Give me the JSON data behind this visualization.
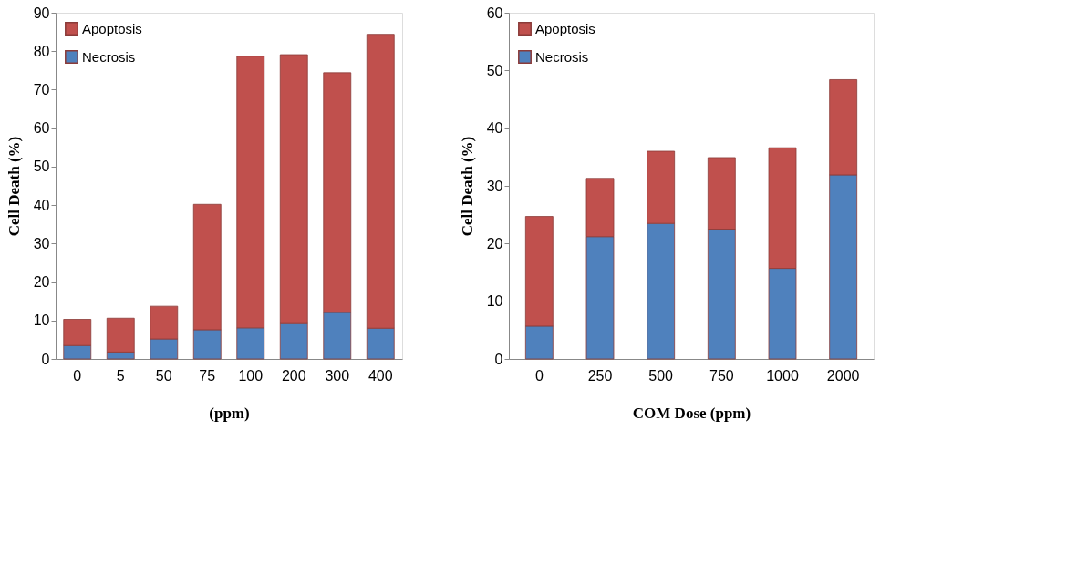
{
  "chart_data": [
    {
      "type": "bar",
      "stacked": true,
      "xlabel": "(ppm)",
      "ylabel": "Cell Death (%)",
      "categories": [
        "0",
        "5",
        "50",
        "75",
        "100",
        "200",
        "300",
        "400"
      ],
      "ylim": [
        0,
        90
      ],
      "yticks": [
        0,
        10,
        20,
        30,
        40,
        50,
        60,
        70,
        80,
        90
      ],
      "grid": false,
      "legend": "top left",
      "series": [
        {
          "name": "Necrosis",
          "color": "#4f81bd",
          "values": [
            3.5,
            1.8,
            5.2,
            7.6,
            8.1,
            9.2,
            12.1,
            8.0
          ]
        },
        {
          "name": "Apoptosis",
          "color": "#c0504d",
          "values": [
            6.8,
            8.8,
            8.5,
            32.6,
            70.6,
            69.9,
            62.3,
            76.4
          ]
        }
      ]
    },
    {
      "type": "bar",
      "stacked": true,
      "xlabel": "COM Dose (ppm)",
      "ylabel": "Cell Death (%)",
      "categories": [
        "0",
        "250",
        "500",
        "750",
        "1000",
        "2000"
      ],
      "ylim": [
        0,
        60
      ],
      "yticks": [
        0,
        10,
        20,
        30,
        40,
        50,
        60
      ],
      "grid": false,
      "legend": "top left",
      "series": [
        {
          "name": "Necrosis",
          "color": "#4f81bd",
          "values": [
            5.7,
            21.2,
            23.5,
            22.5,
            15.7,
            31.9
          ]
        },
        {
          "name": "Apoptosis",
          "color": "#c0504d",
          "values": [
            19.0,
            10.1,
            12.5,
            12.4,
            20.9,
            16.5
          ]
        }
      ]
    }
  ]
}
